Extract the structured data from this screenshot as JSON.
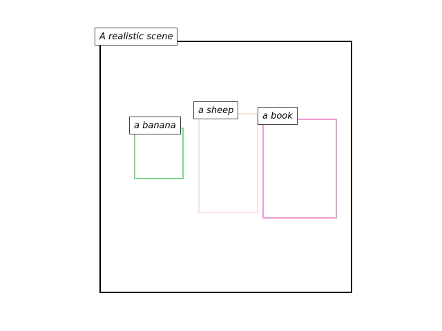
{
  "scene": {
    "title": "A realistic scene"
  },
  "objects": [
    {
      "id": "banana",
      "label": "a banana",
      "color": "#7fd68e"
    },
    {
      "id": "sheep",
      "label": "a sheep",
      "color": "#f5e4dc"
    },
    {
      "id": "book",
      "label": "a book",
      "color": "#f29ad8"
    }
  ]
}
